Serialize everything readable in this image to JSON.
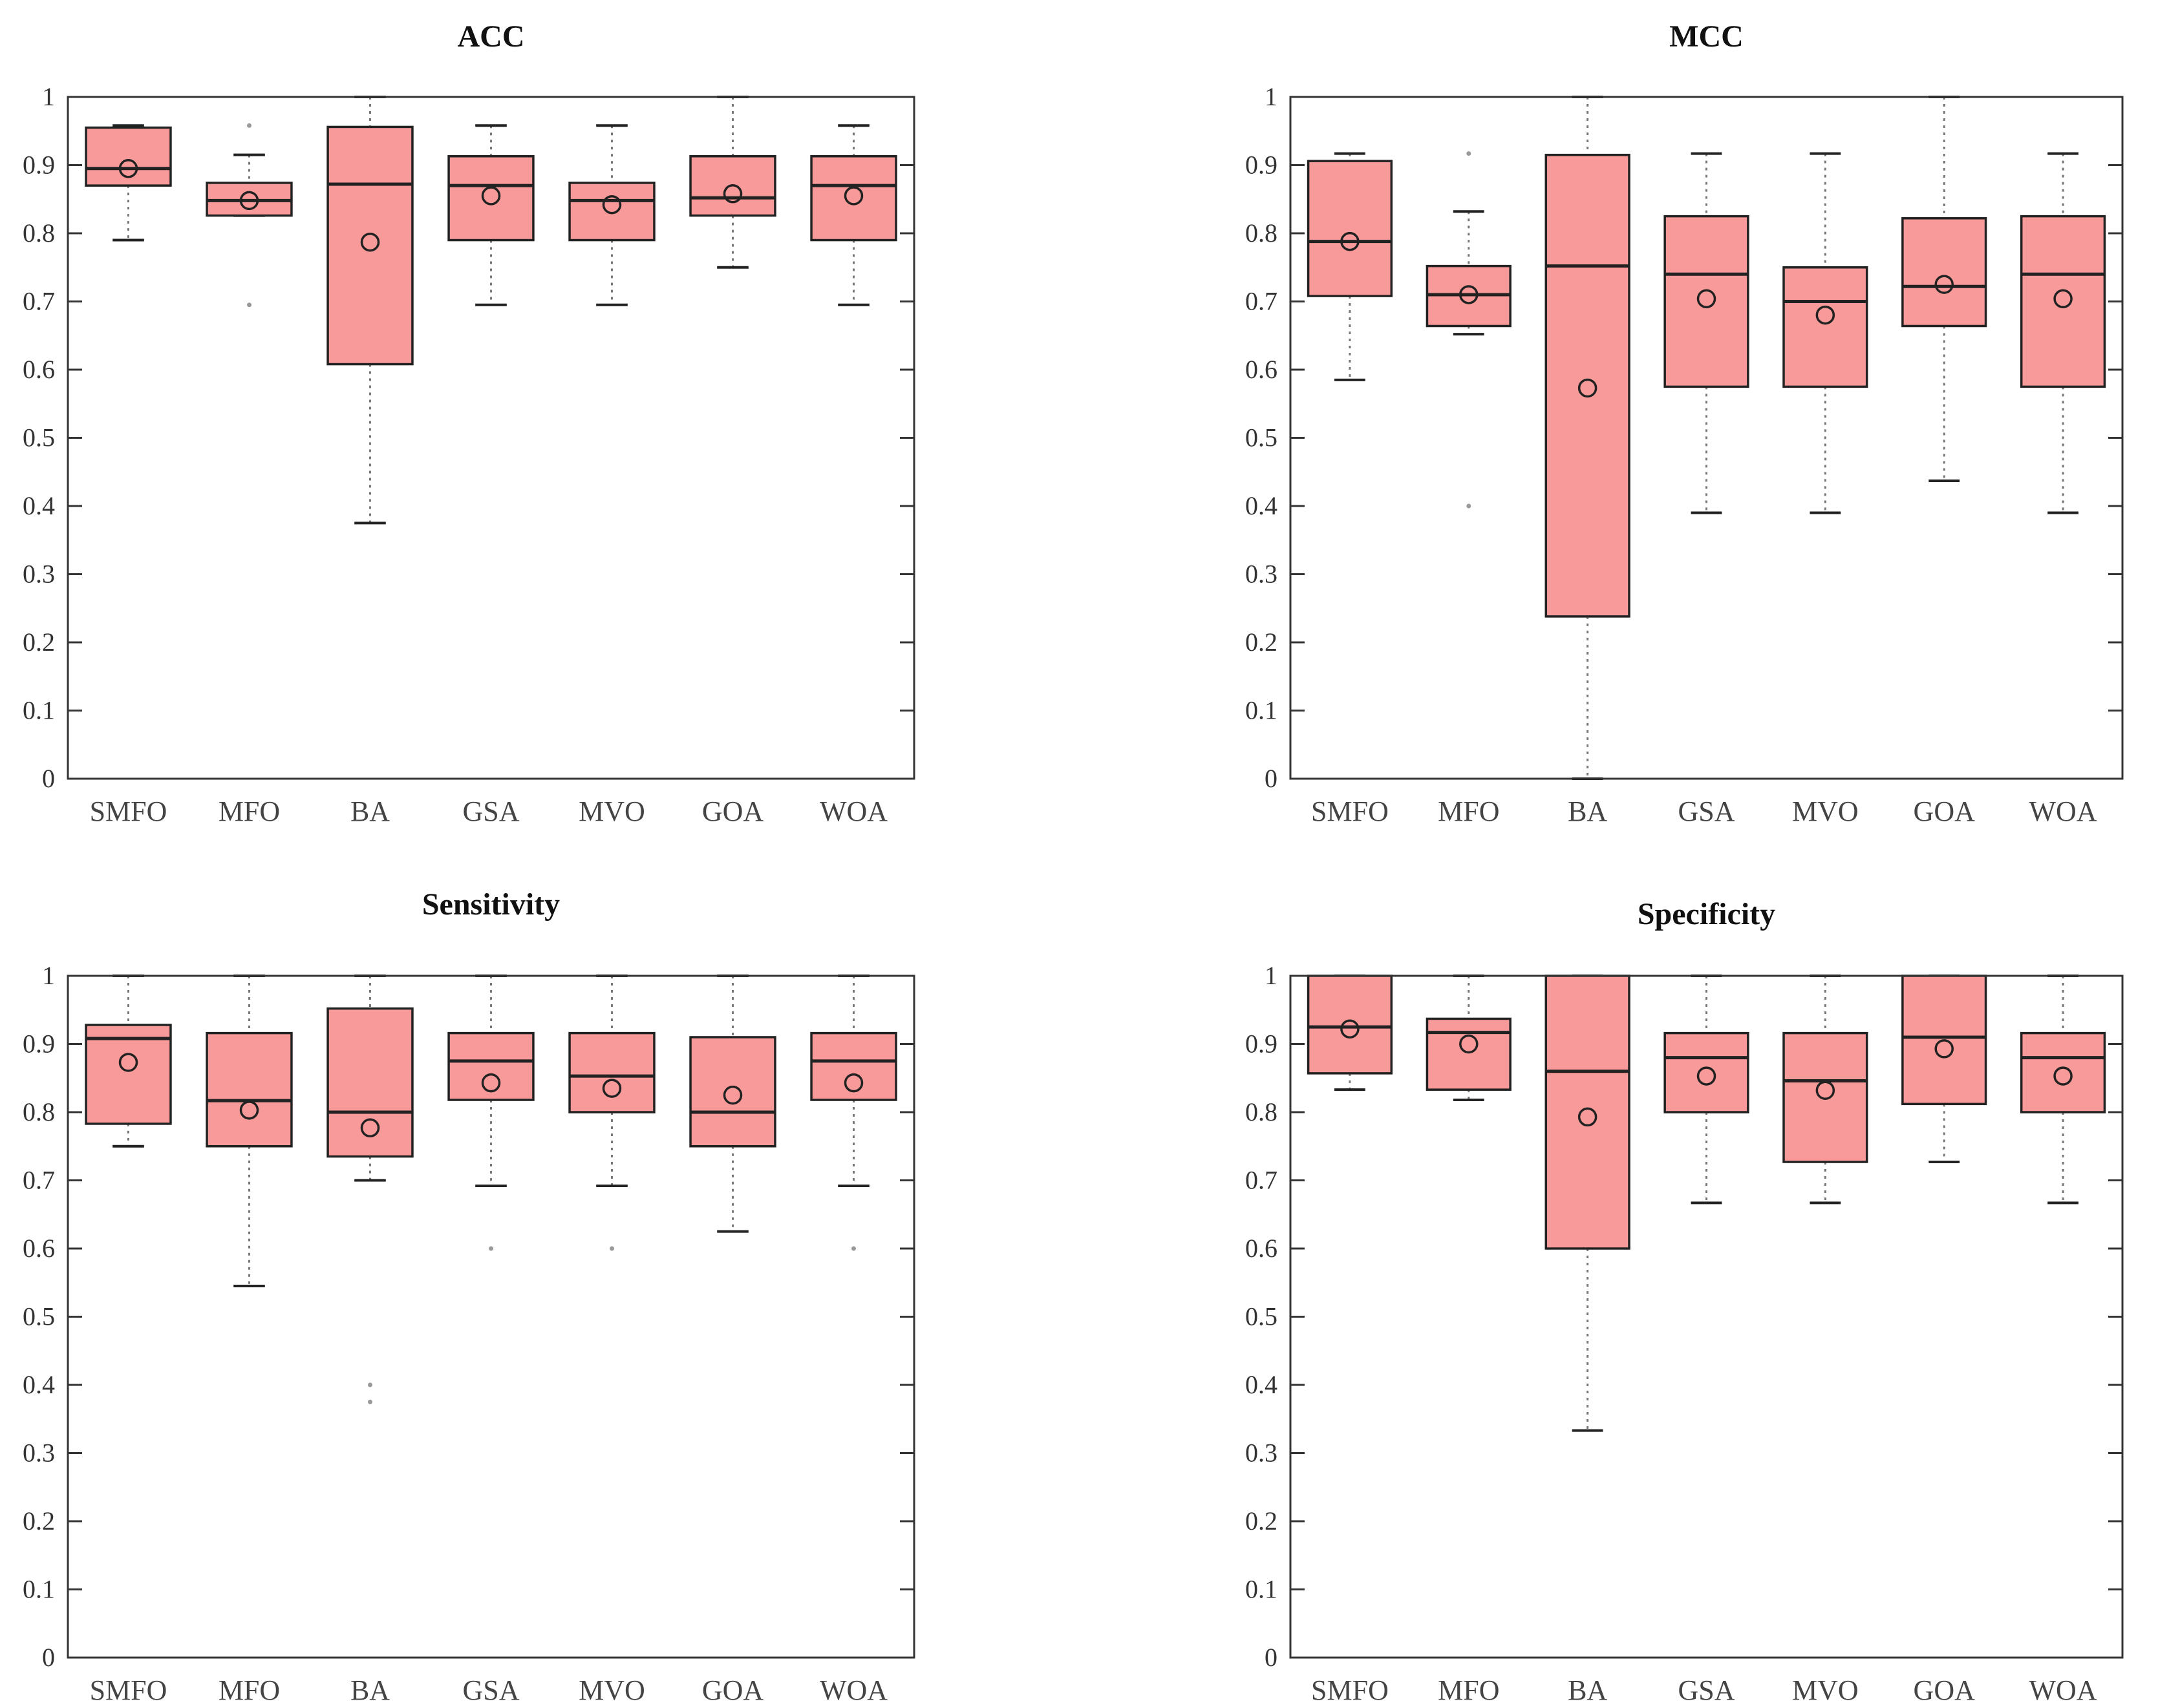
{
  "colors": {
    "box_fill": "#f99a9a",
    "box_edge": "#222222",
    "axis": "#333333",
    "whisker": "#777777"
  },
  "chart_data": [
    {
      "type": "box",
      "title": "ACC",
      "categories": [
        "SMFO",
        "MFO",
        "BA",
        "GSA",
        "MVO",
        "GOA",
        "WOA"
      ],
      "ylim": [
        0,
        1
      ],
      "yticks": [
        "0",
        "0.1",
        "0.2",
        "0.3",
        "0.4",
        "0.5",
        "0.6",
        "0.7",
        "0.8",
        "0.9",
        "1"
      ],
      "boxes": [
        {
          "min": 0.79,
          "q1": 0.87,
          "median": 0.895,
          "q3": 0.955,
          "max": 0.958,
          "mean": 0.895,
          "outliers": []
        },
        {
          "min": 0.826,
          "q1": 0.826,
          "median": 0.848,
          "q3": 0.874,
          "max": 0.915,
          "mean": 0.848,
          "outliers": [
            0.695,
            0.958
          ]
        },
        {
          "min": 0.375,
          "q1": 0.608,
          "median": 0.872,
          "q3": 0.956,
          "max": 1.0,
          "mean": 0.787,
          "outliers": []
        },
        {
          "min": 0.695,
          "q1": 0.79,
          "median": 0.87,
          "q3": 0.913,
          "max": 0.958,
          "mean": 0.855,
          "outliers": []
        },
        {
          "min": 0.695,
          "q1": 0.79,
          "median": 0.848,
          "q3": 0.874,
          "max": 0.958,
          "mean": 0.842,
          "outliers": []
        },
        {
          "min": 0.75,
          "q1": 0.826,
          "median": 0.852,
          "q3": 0.913,
          "max": 1.0,
          "mean": 0.858,
          "outliers": []
        },
        {
          "min": 0.695,
          "q1": 0.79,
          "median": 0.87,
          "q3": 0.913,
          "max": 0.958,
          "mean": 0.855,
          "outliers": []
        }
      ]
    },
    {
      "type": "box",
      "title": "MCC",
      "categories": [
        "SMFO",
        "MFO",
        "BA",
        "GSA",
        "MVO",
        "GOA",
        "WOA"
      ],
      "ylim": [
        0,
        1
      ],
      "yticks": [
        "0",
        "0.1",
        "0.2",
        "0.3",
        "0.4",
        "0.5",
        "0.6",
        "0.7",
        "0.8",
        "0.9",
        "1"
      ],
      "boxes": [
        {
          "min": 0.585,
          "q1": 0.708,
          "median": 0.788,
          "q3": 0.906,
          "max": 0.917,
          "mean": 0.788,
          "outliers": []
        },
        {
          "min": 0.652,
          "q1": 0.664,
          "median": 0.71,
          "q3": 0.752,
          "max": 0.832,
          "mean": 0.71,
          "outliers": [
            0.4,
            0.917
          ]
        },
        {
          "min": 0.0,
          "q1": 0.238,
          "median": 0.752,
          "q3": 0.915,
          "max": 1.0,
          "mean": 0.573,
          "outliers": []
        },
        {
          "min": 0.39,
          "q1": 0.575,
          "median": 0.74,
          "q3": 0.825,
          "max": 0.917,
          "mean": 0.704,
          "outliers": []
        },
        {
          "min": 0.39,
          "q1": 0.575,
          "median": 0.7,
          "q3": 0.75,
          "max": 0.917,
          "mean": 0.68,
          "outliers": []
        },
        {
          "min": 0.437,
          "q1": 0.664,
          "median": 0.722,
          "q3": 0.822,
          "max": 1.0,
          "mean": 0.725,
          "outliers": []
        },
        {
          "min": 0.39,
          "q1": 0.575,
          "median": 0.74,
          "q3": 0.825,
          "max": 0.917,
          "mean": 0.704,
          "outliers": []
        }
      ]
    },
    {
      "type": "box",
      "title": "Sensitivity",
      "categories": [
        "SMFO",
        "MFO",
        "BA",
        "GSA",
        "MVO",
        "GOA",
        "WOA"
      ],
      "ylim": [
        0,
        1
      ],
      "yticks": [
        "0",
        "0.1",
        "0.2",
        "0.3",
        "0.4",
        "0.5",
        "0.6",
        "0.7",
        "0.8",
        "0.9",
        "1"
      ],
      "boxes": [
        {
          "min": 0.75,
          "q1": 0.783,
          "median": 0.908,
          "q3": 0.928,
          "max": 1.0,
          "mean": 0.873,
          "outliers": []
        },
        {
          "min": 0.545,
          "q1": 0.75,
          "median": 0.817,
          "q3": 0.916,
          "max": 1.0,
          "mean": 0.803,
          "outliers": []
        },
        {
          "min": 0.7,
          "q1": 0.735,
          "median": 0.8,
          "q3": 0.952,
          "max": 1.0,
          "mean": 0.777,
          "outliers": [
            0.4,
            0.375
          ]
        },
        {
          "min": 0.692,
          "q1": 0.818,
          "median": 0.875,
          "q3": 0.916,
          "max": 1.0,
          "mean": 0.843,
          "outliers": [
            0.6
          ]
        },
        {
          "min": 0.692,
          "q1": 0.8,
          "median": 0.853,
          "q3": 0.916,
          "max": 1.0,
          "mean": 0.835,
          "outliers": [
            0.6
          ]
        },
        {
          "min": 0.625,
          "q1": 0.75,
          "median": 0.8,
          "q3": 0.91,
          "max": 1.0,
          "mean": 0.825,
          "outliers": []
        },
        {
          "min": 0.692,
          "q1": 0.818,
          "median": 0.875,
          "q3": 0.916,
          "max": 1.0,
          "mean": 0.843,
          "outliers": [
            0.6
          ]
        }
      ]
    },
    {
      "type": "box",
      "title": "Specificity",
      "categories": [
        "SMFO",
        "MFO",
        "BA",
        "GSA",
        "MVO",
        "GOA",
        "WOA"
      ],
      "ylim": [
        0,
        1
      ],
      "yticks": [
        "0",
        "0.1",
        "0.2",
        "0.3",
        "0.4",
        "0.5",
        "0.6",
        "0.7",
        "0.8",
        "0.9",
        "1"
      ],
      "boxes": [
        {
          "min": 0.833,
          "q1": 0.857,
          "median": 0.925,
          "q3": 1.0,
          "max": 1.0,
          "mean": 0.922,
          "outliers": []
        },
        {
          "min": 0.818,
          "q1": 0.833,
          "median": 0.917,
          "q3": 0.937,
          "max": 1.0,
          "mean": 0.9,
          "outliers": []
        },
        {
          "min": 0.333,
          "q1": 0.6,
          "median": 0.86,
          "q3": 1.0,
          "max": 1.0,
          "mean": 0.793,
          "outliers": []
        },
        {
          "min": 0.667,
          "q1": 0.8,
          "median": 0.88,
          "q3": 0.916,
          "max": 1.0,
          "mean": 0.853,
          "outliers": []
        },
        {
          "min": 0.667,
          "q1": 0.727,
          "median": 0.846,
          "q3": 0.916,
          "max": 1.0,
          "mean": 0.832,
          "outliers": []
        },
        {
          "min": 0.727,
          "q1": 0.812,
          "median": 0.91,
          "q3": 1.0,
          "max": 1.0,
          "mean": 0.893,
          "outliers": []
        },
        {
          "min": 0.667,
          "q1": 0.8,
          "median": 0.88,
          "q3": 0.916,
          "max": 1.0,
          "mean": 0.853,
          "outliers": []
        }
      ]
    }
  ]
}
